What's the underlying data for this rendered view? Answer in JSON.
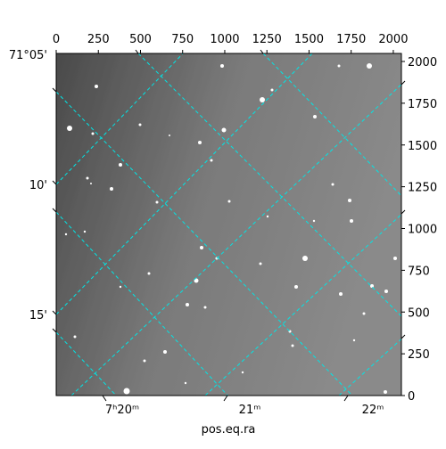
{
  "chart_data": {
    "type": "image",
    "xlabel": "pos.eq.ra",
    "xlim": [
      0,
      2048
    ],
    "xticks": [
      0,
      250,
      500,
      750,
      1000,
      1250,
      1500,
      1750,
      2000
    ],
    "ylim": [
      0,
      2048
    ],
    "yticks": [
      0,
      250,
      500,
      750,
      1000,
      1250,
      1500,
      1750,
      2000
    ],
    "ra_ticks": [
      "7ʰ20ᵐ",
      "21ᵐ",
      "22ᵐ"
    ],
    "dec_ticks": [
      "71°05'",
      "10'",
      "15'"
    ],
    "grid_color": "#00e5e5"
  }
}
